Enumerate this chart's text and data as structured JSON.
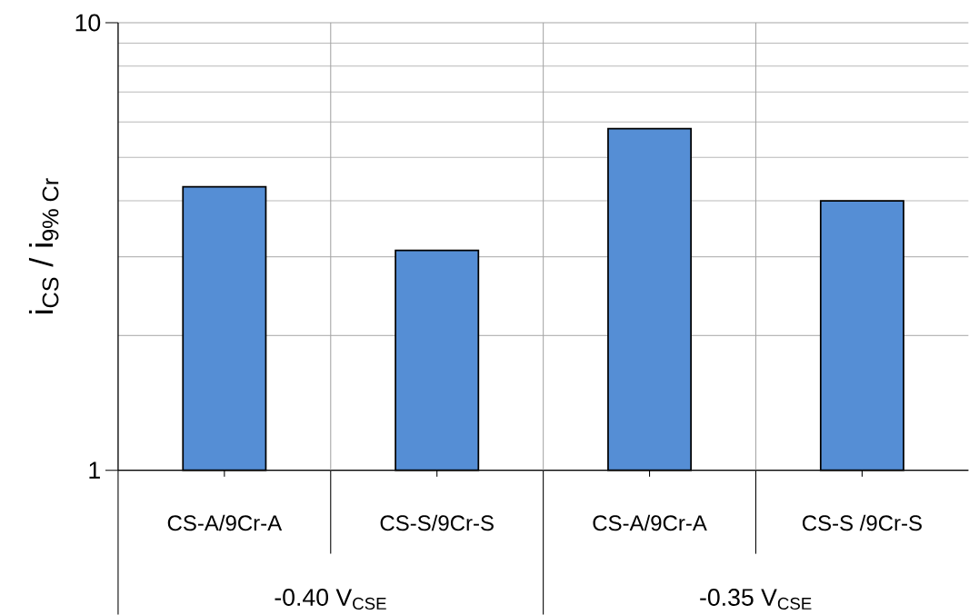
{
  "chart_data": {
    "type": "bar",
    "ylabel": "i$_{CS}$ / i$_{9% Cr}$",
    "categories": [
      "CS-A/9Cr-A",
      "CS-S/9Cr-S",
      "CS-A/9Cr-A",
      "CS-S /9Cr-S"
    ],
    "values": [
      4.3,
      3.1,
      5.8,
      4.0
    ],
    "color": "#558ed5",
    "annotations": [
      "-0.40  V$_{CSE}$",
      "-0.35 V$_{CSE}$"
    ],
    "ylim": [
      1,
      10
    ],
    "yticks": [
      1,
      10
    ],
    "log": true,
    "grid": true
  }
}
